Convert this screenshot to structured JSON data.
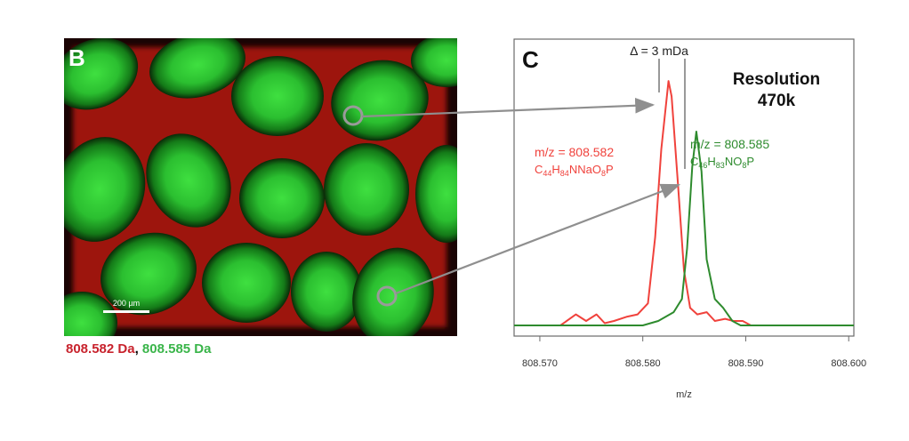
{
  "panel_b": {
    "letter": "B",
    "scale_bar_label": "200 µm",
    "caption_red": "808.582 Da",
    "caption_sep": ",",
    "caption_green": "808.585 Da",
    "colors": {
      "red": "#c8232d",
      "green": "#3ab54a",
      "bg_red": "#e0231a",
      "cell_green": "#2ecb35"
    }
  },
  "panel_c": {
    "letter": "C",
    "delta_label": "Δ = 3 mDa",
    "resolution_line1": "Resolution",
    "resolution_line2": "470k",
    "red_mz": "m/z = 808.582",
    "red_formula": [
      "C",
      "44",
      "H",
      "84",
      "NNaO",
      "8",
      "P"
    ],
    "green_mz": "m/z = 808.585",
    "green_formula": [
      "C",
      "46",
      "H",
      "83",
      "NO",
      "8",
      "P"
    ],
    "colors": {
      "red": "#f0423c",
      "green": "#2e8b2e",
      "arrow": "#8f8f8f"
    }
  },
  "chart_data": {
    "type": "line",
    "xlabel": "m/z",
    "ylabel": "",
    "xlim": [
      808.5675,
      808.6005
    ],
    "ylim": [
      0,
      1.3
    ],
    "x_ticks": [
      808.57,
      808.58,
      808.59,
      808.6
    ],
    "x_tick_labels": [
      "808.570",
      "808.580",
      "808.590",
      "808.600"
    ],
    "grid": false,
    "series": [
      {
        "name": "",
        "color": "#f0423c",
        "x": [
          808.5675,
          808.572,
          808.5735,
          808.5745,
          808.5755,
          808.5763,
          808.5772,
          808.5785,
          808.5795,
          808.5805,
          808.5812,
          808.5818,
          808.5825,
          808.5828,
          808.5834,
          808.584,
          808.5846,
          808.5853,
          808.5862,
          808.587,
          808.588,
          808.5888,
          808.5897,
          808.5905,
          808.6005
        ],
        "y": [
          0,
          0,
          0.05,
          0.02,
          0.05,
          0.01,
          0.02,
          0.04,
          0.05,
          0.1,
          0.4,
          0.8,
          1.11,
          1.04,
          0.65,
          0.25,
          0.08,
          0.05,
          0.06,
          0.02,
          0.03,
          0.02,
          0.02,
          0,
          0
        ]
      },
      {
        "name": "",
        "color": "#2e8b2e",
        "x": [
          808.5675,
          808.58,
          808.5815,
          808.583,
          808.5838,
          808.5843,
          808.5848,
          808.5852,
          808.5857,
          808.5862,
          808.587,
          808.5878,
          808.5887,
          808.5895,
          808.6005
        ],
        "y": [
          0,
          0,
          0.02,
          0.06,
          0.12,
          0.35,
          0.72,
          0.88,
          0.7,
          0.3,
          0.12,
          0.08,
          0.02,
          0,
          0
        ]
      }
    ]
  }
}
